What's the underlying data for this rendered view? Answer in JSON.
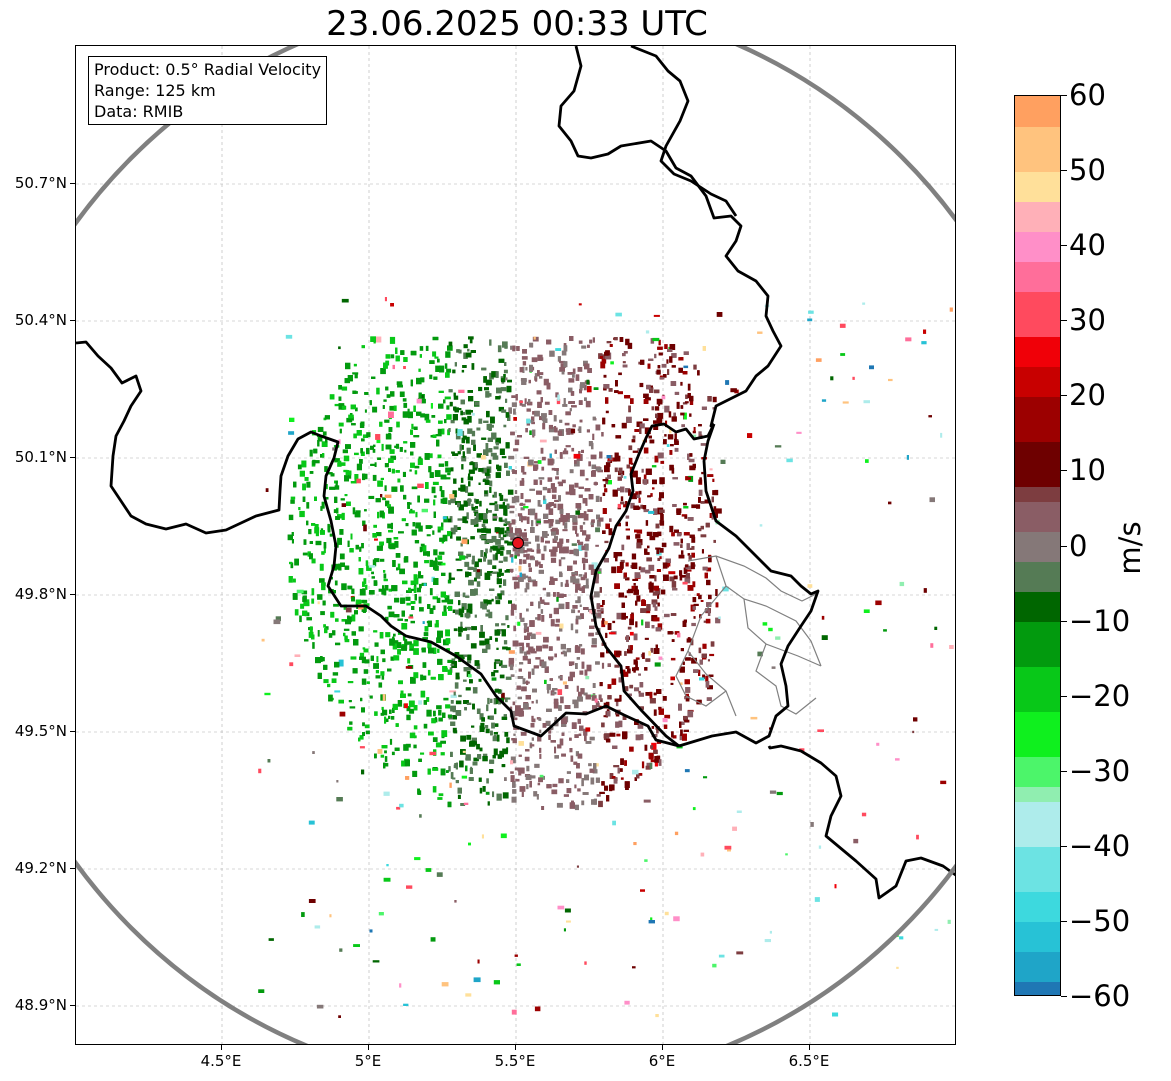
{
  "title": "23.06.2025 00:33 UTC",
  "info_box": {
    "product": "Product: 0.5° Radial Velocity",
    "range": "Range: 125 km",
    "data": "Data: RMIB"
  },
  "map": {
    "lon_range": [
      4.0,
      7.0
    ],
    "lat_range": [
      48.8,
      50.99
    ],
    "lon_ticks": [
      {
        "value": 4.5,
        "label": "4.5°E"
      },
      {
        "value": 5.0,
        "label": "5°E"
      },
      {
        "value": 5.5,
        "label": "5.5°E"
      },
      {
        "value": 6.0,
        "label": "6°E"
      },
      {
        "value": 6.5,
        "label": "6.5°E"
      }
    ],
    "lat_ticks": [
      {
        "value": 50.7,
        "label": "50.7°N"
      },
      {
        "value": 50.4,
        "label": "50.4°N"
      },
      {
        "value": 50.1,
        "label": "50.1°N"
      },
      {
        "value": 49.8,
        "label": "49.8°N"
      },
      {
        "value": 49.5,
        "label": "49.5°N"
      },
      {
        "value": 49.2,
        "label": "49.2°N"
      },
      {
        "value": 48.9,
        "label": "48.9°N"
      }
    ],
    "grid": true,
    "radar_site": {
      "lon": 5.505,
      "lat": 49.915,
      "color": "#e8141e"
    },
    "range_ring_km": 125,
    "ring_color": "#808080",
    "border_color": "#000000",
    "subregion_color": "#808080"
  },
  "colorbar": {
    "unit": "m/s",
    "min": -60,
    "max": 60,
    "ticks": [
      {
        "value": 60,
        "label": "60"
      },
      {
        "value": 50,
        "label": "50"
      },
      {
        "value": 40,
        "label": "40"
      },
      {
        "value": 30,
        "label": "30"
      },
      {
        "value": 20,
        "label": "20"
      },
      {
        "value": 10,
        "label": "10"
      },
      {
        "value": 0,
        "label": "0"
      },
      {
        "value": -10,
        "label": "−10"
      },
      {
        "value": -20,
        "label": "−20"
      },
      {
        "value": -30,
        "label": "−30"
      },
      {
        "value": -40,
        "label": "−40"
      },
      {
        "value": -50,
        "label": "−50"
      },
      {
        "value": -60,
        "label": "−60"
      }
    ],
    "stops": [
      {
        "from": -60,
        "to": -58,
        "color": "#1f77b4"
      },
      {
        "from": -58,
        "to": -54,
        "color": "#1fa5c8"
      },
      {
        "from": -54,
        "to": -50,
        "color": "#27c2d6"
      },
      {
        "from": -50,
        "to": -46,
        "color": "#3dd9de"
      },
      {
        "from": -46,
        "to": -40,
        "color": "#6ce3e3"
      },
      {
        "from": -40,
        "to": -34,
        "color": "#aeeceb"
      },
      {
        "from": -34,
        "to": -32,
        "color": "#90eeb0"
      },
      {
        "from": -32,
        "to": -28,
        "color": "#4cf56a"
      },
      {
        "from": -28,
        "to": -22,
        "color": "#0ff01e"
      },
      {
        "from": -22,
        "to": -16,
        "color": "#08c818"
      },
      {
        "from": -16,
        "to": -10,
        "color": "#029a0e"
      },
      {
        "from": -10,
        "to": -6,
        "color": "#006600"
      },
      {
        "from": -6,
        "to": -2,
        "color": "#557b55"
      },
      {
        "from": -2,
        "to": 2,
        "color": "#857878"
      },
      {
        "from": 2,
        "to": 6,
        "color": "#8a5d65"
      },
      {
        "from": 6,
        "to": 8,
        "color": "#7d3d40"
      },
      {
        "from": 8,
        "to": 14,
        "color": "#6e0000"
      },
      {
        "from": 14,
        "to": 20,
        "color": "#9c0000"
      },
      {
        "from": 20,
        "to": 24,
        "color": "#c80000"
      },
      {
        "from": 24,
        "to": 28,
        "color": "#f00008"
      },
      {
        "from": 28,
        "to": 34,
        "color": "#ff4a5e"
      },
      {
        "from": 34,
        "to": 38,
        "color": "#ff6e9a"
      },
      {
        "from": 38,
        "to": 42,
        "color": "#ff8fc8"
      },
      {
        "from": 42,
        "to": 46,
        "color": "#ffb0b8"
      },
      {
        "from": 46,
        "to": 50,
        "color": "#ffe09a"
      },
      {
        "from": 50,
        "to": 56,
        "color": "#ffc37e"
      },
      {
        "from": 56,
        "to": 60,
        "color": "#ffa060"
      }
    ]
  }
}
